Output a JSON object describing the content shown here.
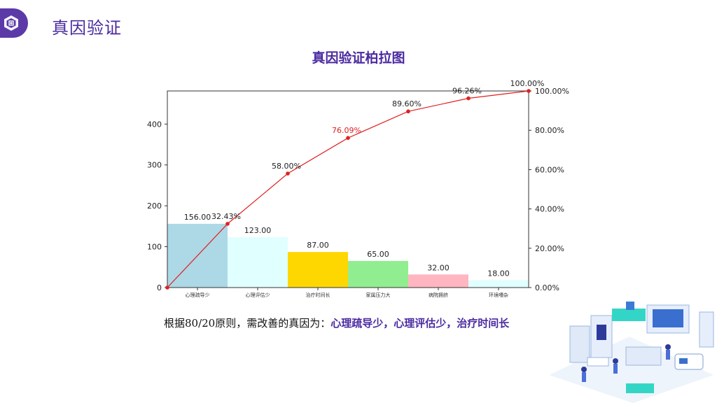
{
  "header": {
    "title": "真因验证"
  },
  "colors": {
    "accent": "#5b3aa8",
    "line": "#e02020"
  },
  "conclusion": {
    "prefix": "根据80/20原则，需改善的真因为：",
    "highlight": "心理疏导少，心理评估少，治疗时间长"
  },
  "chart_data": {
    "type": "bar",
    "title": "真因验证柏拉图",
    "categories": [
      "心理疏导少",
      "心理评估少",
      "治疗时间长",
      "家属压力大",
      "病院拥挤",
      "环境嘈杂"
    ],
    "values": [
      156,
      123,
      87,
      65,
      32,
      18
    ],
    "value_labels": [
      "156.00",
      "123.00",
      "87.00",
      "65.00",
      "32.00",
      "18.00"
    ],
    "bar_colors": [
      "#add8e6",
      "#e0ffff",
      "#ffd700",
      "#90ee90",
      "#ffb6c1",
      "#e0ffff"
    ],
    "cumulative_percent": [
      0,
      32.43,
      58.0,
      76.09,
      89.6,
      96.26,
      100.0
    ],
    "cumulative_labels": [
      "",
      "32.43%",
      "58.00%",
      "76.09%",
      "89.60%",
      "96.26%",
      "100.00%"
    ],
    "cumulative_label_colors": [
      "#222",
      "#222",
      "#222",
      "#e02020",
      "#222",
      "#222",
      "#222"
    ],
    "left_axis": {
      "ticks": [
        0,
        100,
        200,
        300,
        400
      ],
      "tick_labels": [
        "0",
        "100",
        "200",
        "300",
        "400"
      ],
      "ylim": [
        0,
        481
      ]
    },
    "right_axis": {
      "ticks": [
        0,
        20,
        40,
        60,
        80,
        100
      ],
      "tick_labels": [
        "0.00%",
        "20.00%",
        "40.00%",
        "60.00%",
        "80.00%",
        "100.00%"
      ],
      "ylim": [
        0,
        100
      ]
    },
    "grid": false
  }
}
